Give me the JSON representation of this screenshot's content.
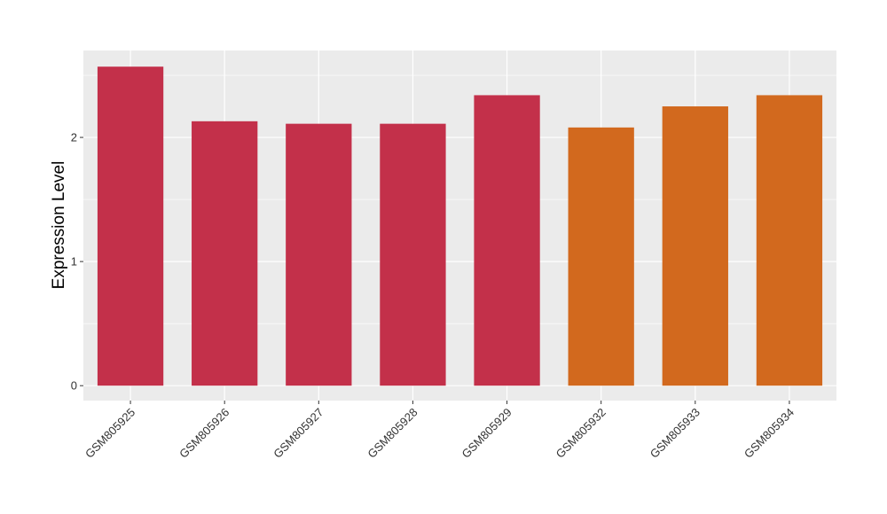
{
  "chart_data": {
    "type": "bar",
    "title": "",
    "xlabel": "",
    "ylabel": "Expression Level",
    "categories": [
      "GSM805925",
      "GSM805926",
      "GSM805927",
      "GSM805928",
      "GSM805929",
      "GSM805932",
      "GSM805933",
      "GSM805934"
    ],
    "values": [
      2.57,
      2.13,
      2.11,
      2.11,
      2.34,
      2.08,
      2.25,
      2.34
    ],
    "bar_colors": [
      "#C3304A",
      "#C3304A",
      "#C3304A",
      "#C3304A",
      "#C3304A",
      "#D2691E",
      "#D2691E",
      "#D2691E"
    ],
    "ylim": [
      -0.12,
      2.7
    ],
    "y_ticks": [
      0,
      1,
      2
    ],
    "y_tick_labels": [
      "0",
      "1",
      "2"
    ],
    "grid": true,
    "legend": "none",
    "panel_background": "#EBEBEB"
  }
}
